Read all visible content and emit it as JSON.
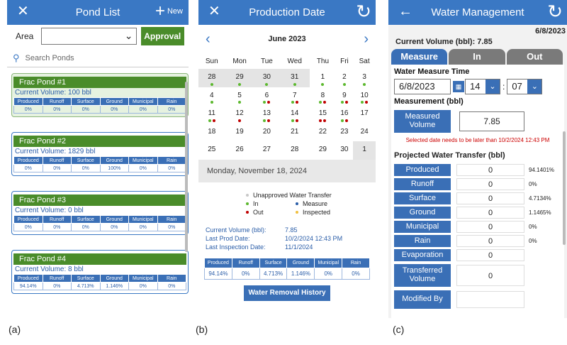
{
  "panel_a": {
    "title": "Pond List",
    "new_label": "New",
    "area_label": "Area",
    "approval_label": "Approval",
    "search_placeholder": "Search Ponds",
    "columns": [
      "Produced",
      "Runoff",
      "Surface",
      "Ground",
      "Municipal",
      "Rain"
    ],
    "ponds": [
      {
        "name": "Frac Pond #1",
        "volume_label": "Current Volume:",
        "volume": "100",
        "unit": "bbl",
        "values": [
          "0%",
          "0%",
          "0%",
          "0%",
          "0%",
          "0%"
        ],
        "selected": true
      },
      {
        "name": "Frac Pond #2",
        "volume_label": "Current Volume:",
        "volume": "1829",
        "unit": "bbl",
        "values": [
          "0%",
          "0%",
          "0%",
          "100%",
          "0%",
          "0%"
        ],
        "selected": false
      },
      {
        "name": "Frac Pond #3",
        "volume_label": "Current Volume:",
        "volume": "0",
        "unit": "bbl",
        "values": [
          "0%",
          "0%",
          "0%",
          "0%",
          "0%",
          "0%"
        ],
        "selected": false
      },
      {
        "name": "Frac Pond #4",
        "volume_label": "Current Volume:",
        "volume": "8",
        "unit": "bbl",
        "values": [
          "94.14%",
          "0%",
          "4.713%",
          "1.146%",
          "0%",
          "0%"
        ],
        "selected": false
      }
    ],
    "caption": "(a)"
  },
  "panel_b": {
    "title": "Production Date",
    "month": "June 2023",
    "weekdays": [
      "Sun",
      "Mon",
      "Tue",
      "Wed",
      "Thu",
      "Fri",
      "Sat"
    ],
    "weeks": [
      [
        {
          "d": "28",
          "prev": true,
          "dots": [
            "#5cb82e"
          ]
        },
        {
          "d": "29",
          "prev": true,
          "dots": [
            "#5cb82e"
          ]
        },
        {
          "d": "30",
          "prev": true,
          "dots": [
            "#5cb82e"
          ]
        },
        {
          "d": "31",
          "prev": true,
          "dots": [
            "#5cb82e"
          ]
        },
        {
          "d": "1",
          "dots": [
            "#5cb82e"
          ]
        },
        {
          "d": "2",
          "dots": [
            "#5cb82e"
          ]
        },
        {
          "d": "3",
          "dots": [
            "#5cb82e"
          ]
        }
      ],
      [
        {
          "d": "4",
          "dots": [
            "#5cb82e"
          ]
        },
        {
          "d": "5",
          "dots": [
            "#5cb82e"
          ]
        },
        {
          "d": "6",
          "dots": [
            "#5cb82e",
            "#c00000"
          ]
        },
        {
          "d": "7",
          "dots": [
            "#5cb82e",
            "#c00000"
          ]
        },
        {
          "d": "8",
          "dots": [
            "#5cb82e",
            "#c00000"
          ]
        },
        {
          "d": "9",
          "dots": [
            "#5cb82e",
            "#c00000"
          ]
        },
        {
          "d": "10",
          "dots": [
            "#5cb82e",
            "#c00000"
          ]
        }
      ],
      [
        {
          "d": "11",
          "dots": [
            "#5cb82e",
            "#c00000"
          ]
        },
        {
          "d": "12",
          "dots": [
            "#c00000"
          ]
        },
        {
          "d": "13",
          "dots": [
            "#5cb82e",
            "#c00000"
          ]
        },
        {
          "d": "14",
          "dots": [
            "#5cb82e",
            "#c00000"
          ]
        },
        {
          "d": "15",
          "dots": [
            "#c00000",
            "#c00000"
          ]
        },
        {
          "d": "16",
          "dots": [
            "#5cb82e",
            "#c00000"
          ]
        },
        {
          "d": "17",
          "dots": []
        }
      ],
      [
        {
          "d": "18",
          "dots": []
        },
        {
          "d": "19",
          "dots": []
        },
        {
          "d": "20",
          "dots": []
        },
        {
          "d": "21",
          "dots": []
        },
        {
          "d": "22",
          "dots": []
        },
        {
          "d": "23",
          "dots": []
        },
        {
          "d": "24",
          "dots": []
        }
      ],
      [
        {
          "d": "25",
          "dots": []
        },
        {
          "d": "26",
          "dots": []
        },
        {
          "d": "27",
          "dots": []
        },
        {
          "d": "28",
          "dots": []
        },
        {
          "d": "29",
          "dots": []
        },
        {
          "d": "30",
          "dots": []
        },
        {
          "d": "1",
          "prev": true,
          "dots": []
        }
      ]
    ],
    "selected_date": "Monday, November 18, 2024",
    "legend": [
      {
        "label": "Unapproved Water Transfer",
        "color": "#c8c8c8"
      },
      {
        "label": "In",
        "color": "#5cb82e"
      },
      {
        "label": "Measure",
        "color": "#2a5da8"
      },
      {
        "label": "Out",
        "color": "#c00000"
      },
      {
        "label": "Inspected",
        "color": "#f0c040"
      }
    ],
    "info": [
      {
        "k": "Current Volume (bbl):",
        "v": "7.85"
      },
      {
        "k": "Last Prod Date:",
        "v": "10/2/2024 12:43 PM"
      },
      {
        "k": "Last Inspection Date:",
        "v": "11/1/2024"
      }
    ],
    "columns": [
      "Produced",
      "Runoff",
      "Surface",
      "Ground",
      "Municipal",
      "Rain"
    ],
    "values": [
      "94.14%",
      "0%",
      "4.713%",
      "1.146%",
      "0%",
      "0%"
    ],
    "history_button": "Water Removal History",
    "caption": "(b)"
  },
  "panel_c": {
    "title": "Water Management",
    "date": "6/8/2023",
    "current_volume": "Current Volume (bbl):  7.85",
    "tabs": [
      "Measure",
      "In",
      "Out"
    ],
    "measure_time_label": "Water Measure Time",
    "date_value": "6/8/2023",
    "hour": "14",
    "minute": "07",
    "measurement_label": "Measurement (bbl)",
    "measured_volume_label": "Measured Volume",
    "measured_volume_value": "7.85",
    "warning": "Selected date needs to be later than 10/2/2024 12:43 PM",
    "projected_label": "Projected Water Transfer (bbl)",
    "rows": [
      {
        "label": "Produced",
        "value": "0",
        "pct": "94.1401%"
      },
      {
        "label": "Runoff",
        "value": "0",
        "pct": "0%"
      },
      {
        "label": "Surface",
        "value": "0",
        "pct": "4.7134%"
      },
      {
        "label": "Ground",
        "value": "0",
        "pct": "1.1465%"
      },
      {
        "label": "Municipal",
        "value": "0",
        "pct": "0%"
      },
      {
        "label": "Rain",
        "value": "0",
        "pct": "0%"
      },
      {
        "label": "Evaporation",
        "value": "0",
        "pct": ""
      }
    ],
    "transferred_label": "Transferred Volume",
    "transferred_value": "0",
    "modified_label": "Modified By",
    "caption": "(c)"
  }
}
